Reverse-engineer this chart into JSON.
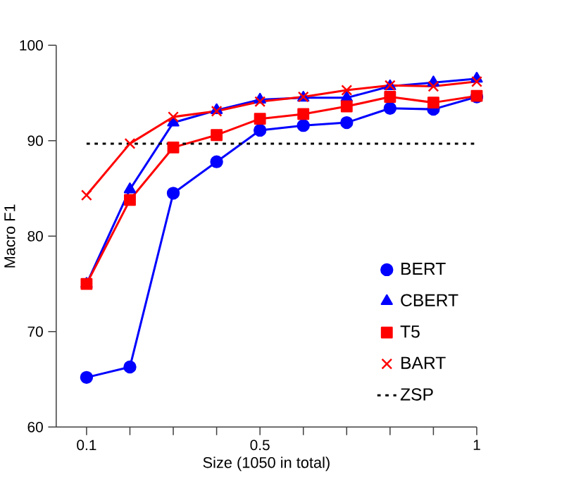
{
  "chart_data": {
    "type": "line",
    "xlabel": "Size (1050 in total)",
    "ylabel": "Macro F1",
    "x": [
      0.1,
      0.2,
      0.3,
      0.4,
      0.5,
      0.6,
      0.7,
      0.8,
      0.9,
      1.0
    ],
    "xlim": [
      0.03,
      1.0
    ],
    "ylim": [
      60,
      100
    ],
    "xticks": [
      0.1,
      {
        "value": 0.2,
        "label": null
      },
      {
        "value": 0.3,
        "label": null
      },
      {
        "value": 0.4,
        "label": null
      },
      0.5,
      {
        "value": 0.6,
        "label": null
      },
      {
        "value": 0.7,
        "label": null
      },
      {
        "value": 0.8,
        "label": null
      },
      {
        "value": 0.9,
        "label": null
      },
      1
    ],
    "yticks": [
      60,
      70,
      80,
      90,
      100
    ],
    "legend": "bottom right",
    "grid": false,
    "series": [
      {
        "name": "BERT",
        "color": "#0000ff",
        "marker": "circle",
        "values": [
          65.2,
          66.3,
          84.5,
          87.8,
          91.1,
          91.6,
          91.9,
          93.4,
          93.3,
          94.6
        ]
      },
      {
        "name": "CBERT",
        "color": "#0000ff",
        "marker": "triangle",
        "values": [
          75.0,
          84.9,
          91.9,
          93.2,
          94.3,
          94.5,
          94.5,
          95.7,
          96.1,
          96.5
        ]
      },
      {
        "name": "T5",
        "color": "#ff0000",
        "marker": "square",
        "values": [
          75.0,
          83.8,
          89.3,
          90.6,
          92.3,
          92.8,
          93.6,
          94.6,
          94.0,
          94.7
        ]
      },
      {
        "name": "BART",
        "color": "#ff0000",
        "marker": "cross",
        "values": [
          84.3,
          89.7,
          92.5,
          93.1,
          94.1,
          94.6,
          95.3,
          95.8,
          95.7,
          96.2
        ]
      },
      {
        "name": "ZSP",
        "color": "#000000",
        "marker": "none",
        "line_style": "dotted",
        "x": [
          0.1,
          1.0
        ],
        "values": [
          89.7,
          89.7
        ]
      }
    ]
  }
}
